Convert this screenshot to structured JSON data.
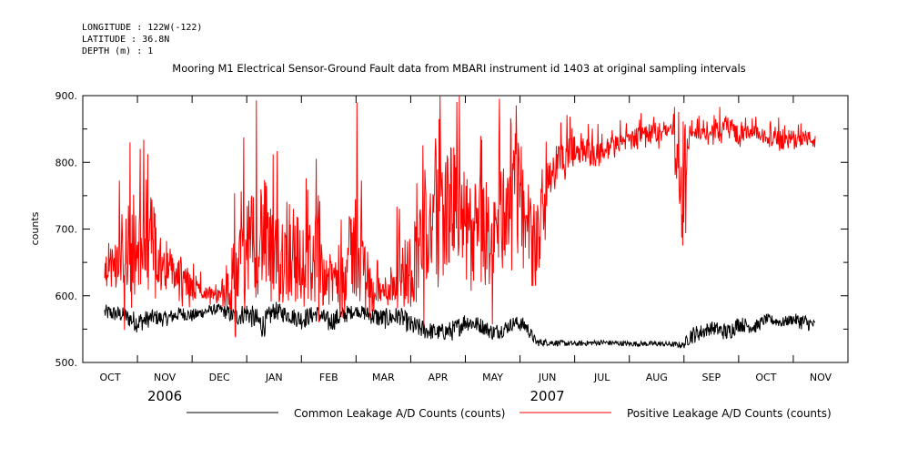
{
  "header": {
    "longitude": "LONGITUDE : 122W(-122)",
    "latitude": "LATITUDE : 36.8N",
    "depth": "DEPTH (m) : 1"
  },
  "chart_data": {
    "type": "line",
    "title": "Mooring M1 Electrical Sensor-Ground Fault data from MBARI instrument id 1403 at original sampling intervals",
    "xlabel": "",
    "ylabel": "counts",
    "ylim": [
      500,
      900
    ],
    "yticks": [
      "500.",
      "600.",
      "700.",
      "800.",
      "900."
    ],
    "months": [
      "OCT",
      "NOV",
      "DEC",
      "JAN",
      "FEB",
      "MAR",
      "APR",
      "MAY",
      "JUN",
      "JUL",
      "AUG",
      "SEP",
      "OCT",
      "NOV"
    ],
    "years": [
      {
        "label": "2006",
        "month_index": 1
      },
      {
        "label": "2007",
        "month_index": 8
      }
    ],
    "xlim_months": [
      -0.5,
      13.5
    ],
    "grid": false,
    "legend_position": "bottom",
    "series": [
      {
        "name": "Common Leakage A/D Counts (counts)",
        "color": "#000000",
        "x_months": [
          -0.1,
          0.2,
          0.5,
          0.8,
          1.0,
          1.3,
          1.5,
          1.8,
          2.0,
          2.3,
          2.5,
          2.8,
          3.0,
          3.3,
          3.5,
          3.8,
          4.0,
          4.3,
          4.5,
          4.8,
          5.0,
          5.3,
          5.5,
          5.8,
          6.0,
          6.3,
          6.5,
          6.8,
          7.0,
          7.2,
          7.4,
          7.6,
          7.8,
          8.0,
          8.5,
          9.0,
          9.5,
          10.0,
          10.3,
          10.5,
          10.6,
          10.8,
          11.0,
          11.3,
          11.5,
          11.8,
          12.0,
          12.3,
          12.5,
          12.7,
          12.9
        ],
        "values": [
          575,
          572,
          560,
          568,
          565,
          574,
          570,
          578,
          580,
          568,
          575,
          555,
          578,
          570,
          565,
          574,
          560,
          572,
          578,
          570,
          565,
          570,
          555,
          548,
          545,
          548,
          562,
          555,
          545,
          550,
          560,
          555,
          530,
          530,
          528,
          530,
          528,
          528,
          527,
          526,
          540,
          545,
          552,
          545,
          558,
          553,
          565,
          560,
          565,
          560,
          556
        ],
        "noise": [
          12,
          12,
          16,
          12,
          12,
          10,
          10,
          8,
          8,
          15,
          16,
          20,
          14,
          12,
          16,
          12,
          16,
          14,
          8,
          14,
          16,
          14,
          16,
          14,
          12,
          16,
          14,
          12,
          12,
          12,
          10,
          12,
          6,
          5,
          4,
          4,
          4,
          4,
          4,
          5,
          14,
          12,
          10,
          14,
          12,
          10,
          8,
          8,
          8,
          14,
          8
        ]
      },
      {
        "name": "Positive Leakage A/D Counts (counts)",
        "color": "#ff0000",
        "x_months": [
          -0.1,
          0.1,
          0.3,
          0.5,
          0.7,
          1.0,
          1.3,
          1.5,
          1.8,
          2.0,
          2.2,
          2.5,
          2.8,
          3.0,
          3.3,
          3.5,
          3.8,
          4.0,
          4.3,
          4.5,
          4.8,
          5.0,
          5.3,
          5.5,
          5.8,
          6.0,
          6.3,
          6.5,
          6.8,
          7.0,
          7.2,
          7.4,
          7.6,
          7.8,
          8.0,
          8.3,
          8.6,
          8.9,
          9.2,
          9.5,
          10.0,
          10.3,
          10.5,
          10.6,
          10.8,
          11.0,
          11.3,
          11.5,
          11.8,
          12.0,
          12.3,
          12.5,
          12.7,
          12.9
        ],
        "values": [
          635,
          645,
          680,
          660,
          700,
          640,
          630,
          610,
          605,
          600,
          620,
          660,
          700,
          640,
          680,
          640,
          660,
          620,
          640,
          680,
          610,
          605,
          630,
          640,
          700,
          720,
          740,
          700,
          690,
          680,
          720,
          780,
          700,
          670,
          780,
          810,
          820,
          810,
          825,
          835,
          845,
          850,
          720,
          845,
          845,
          840,
          860,
          840,
          845,
          838,
          832,
          835,
          838,
          832
        ],
        "noise": [
          20,
          40,
          80,
          60,
          70,
          30,
          30,
          20,
          10,
          10,
          50,
          80,
          90,
          70,
          90,
          60,
          70,
          40,
          50,
          90,
          20,
          20,
          50,
          60,
          90,
          100,
          90,
          80,
          80,
          70,
          90,
          70,
          80,
          60,
          40,
          25,
          20,
          20,
          15,
          15,
          15,
          10,
          90,
          10,
          10,
          12,
          15,
          15,
          10,
          10,
          15,
          15,
          12,
          12
        ]
      }
    ]
  }
}
